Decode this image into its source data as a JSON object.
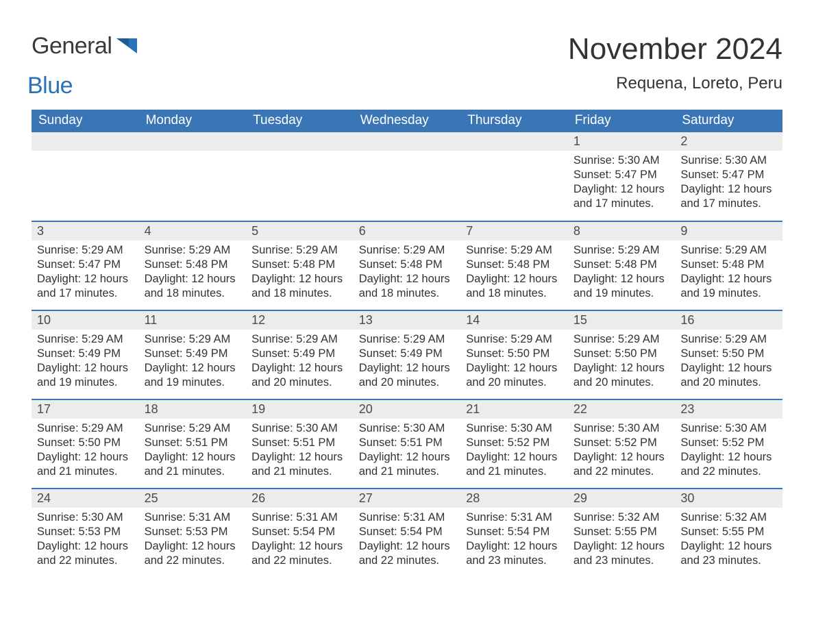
{
  "logo": {
    "word1": "General",
    "word2": "Blue",
    "brand_color": "#2a71b8",
    "text_color": "#3a3a3a"
  },
  "header": {
    "month_title": "November 2024",
    "location": "Requena, Loreto, Peru"
  },
  "colors": {
    "header_bg": "#3a76b6",
    "header_text": "#ffffff",
    "daynum_bg": "#ececec",
    "daynum_text": "#4a4a4a",
    "body_text": "#333333",
    "rule": "#3a76b6",
    "page_bg": "#ffffff"
  },
  "typography": {
    "month_title_fontsize": 44,
    "location_fontsize": 24,
    "weekday_fontsize": 19,
    "daynum_fontsize": 18,
    "cell_fontsize": 16.5,
    "font_family": "Arial"
  },
  "calendar": {
    "weekdays": [
      "Sunday",
      "Monday",
      "Tuesday",
      "Wednesday",
      "Thursday",
      "Friday",
      "Saturday"
    ],
    "weeks": [
      [
        null,
        null,
        null,
        null,
        null,
        {
          "day": "1",
          "sunrise": "Sunrise: 5:30 AM",
          "sunset": "Sunset: 5:47 PM",
          "daylight1": "Daylight: 12 hours",
          "daylight2": "and 17 minutes."
        },
        {
          "day": "2",
          "sunrise": "Sunrise: 5:30 AM",
          "sunset": "Sunset: 5:47 PM",
          "daylight1": "Daylight: 12 hours",
          "daylight2": "and 17 minutes."
        }
      ],
      [
        {
          "day": "3",
          "sunrise": "Sunrise: 5:29 AM",
          "sunset": "Sunset: 5:47 PM",
          "daylight1": "Daylight: 12 hours",
          "daylight2": "and 17 minutes."
        },
        {
          "day": "4",
          "sunrise": "Sunrise: 5:29 AM",
          "sunset": "Sunset: 5:48 PM",
          "daylight1": "Daylight: 12 hours",
          "daylight2": "and 18 minutes."
        },
        {
          "day": "5",
          "sunrise": "Sunrise: 5:29 AM",
          "sunset": "Sunset: 5:48 PM",
          "daylight1": "Daylight: 12 hours",
          "daylight2": "and 18 minutes."
        },
        {
          "day": "6",
          "sunrise": "Sunrise: 5:29 AM",
          "sunset": "Sunset: 5:48 PM",
          "daylight1": "Daylight: 12 hours",
          "daylight2": "and 18 minutes."
        },
        {
          "day": "7",
          "sunrise": "Sunrise: 5:29 AM",
          "sunset": "Sunset: 5:48 PM",
          "daylight1": "Daylight: 12 hours",
          "daylight2": "and 18 minutes."
        },
        {
          "day": "8",
          "sunrise": "Sunrise: 5:29 AM",
          "sunset": "Sunset: 5:48 PM",
          "daylight1": "Daylight: 12 hours",
          "daylight2": "and 19 minutes."
        },
        {
          "day": "9",
          "sunrise": "Sunrise: 5:29 AM",
          "sunset": "Sunset: 5:48 PM",
          "daylight1": "Daylight: 12 hours",
          "daylight2": "and 19 minutes."
        }
      ],
      [
        {
          "day": "10",
          "sunrise": "Sunrise: 5:29 AM",
          "sunset": "Sunset: 5:49 PM",
          "daylight1": "Daylight: 12 hours",
          "daylight2": "and 19 minutes."
        },
        {
          "day": "11",
          "sunrise": "Sunrise: 5:29 AM",
          "sunset": "Sunset: 5:49 PM",
          "daylight1": "Daylight: 12 hours",
          "daylight2": "and 19 minutes."
        },
        {
          "day": "12",
          "sunrise": "Sunrise: 5:29 AM",
          "sunset": "Sunset: 5:49 PM",
          "daylight1": "Daylight: 12 hours",
          "daylight2": "and 20 minutes."
        },
        {
          "day": "13",
          "sunrise": "Sunrise: 5:29 AM",
          "sunset": "Sunset: 5:49 PM",
          "daylight1": "Daylight: 12 hours",
          "daylight2": "and 20 minutes."
        },
        {
          "day": "14",
          "sunrise": "Sunrise: 5:29 AM",
          "sunset": "Sunset: 5:50 PM",
          "daylight1": "Daylight: 12 hours",
          "daylight2": "and 20 minutes."
        },
        {
          "day": "15",
          "sunrise": "Sunrise: 5:29 AM",
          "sunset": "Sunset: 5:50 PM",
          "daylight1": "Daylight: 12 hours",
          "daylight2": "and 20 minutes."
        },
        {
          "day": "16",
          "sunrise": "Sunrise: 5:29 AM",
          "sunset": "Sunset: 5:50 PM",
          "daylight1": "Daylight: 12 hours",
          "daylight2": "and 20 minutes."
        }
      ],
      [
        {
          "day": "17",
          "sunrise": "Sunrise: 5:29 AM",
          "sunset": "Sunset: 5:50 PM",
          "daylight1": "Daylight: 12 hours",
          "daylight2": "and 21 minutes."
        },
        {
          "day": "18",
          "sunrise": "Sunrise: 5:29 AM",
          "sunset": "Sunset: 5:51 PM",
          "daylight1": "Daylight: 12 hours",
          "daylight2": "and 21 minutes."
        },
        {
          "day": "19",
          "sunrise": "Sunrise: 5:30 AM",
          "sunset": "Sunset: 5:51 PM",
          "daylight1": "Daylight: 12 hours",
          "daylight2": "and 21 minutes."
        },
        {
          "day": "20",
          "sunrise": "Sunrise: 5:30 AM",
          "sunset": "Sunset: 5:51 PM",
          "daylight1": "Daylight: 12 hours",
          "daylight2": "and 21 minutes."
        },
        {
          "day": "21",
          "sunrise": "Sunrise: 5:30 AM",
          "sunset": "Sunset: 5:52 PM",
          "daylight1": "Daylight: 12 hours",
          "daylight2": "and 21 minutes."
        },
        {
          "day": "22",
          "sunrise": "Sunrise: 5:30 AM",
          "sunset": "Sunset: 5:52 PM",
          "daylight1": "Daylight: 12 hours",
          "daylight2": "and 22 minutes."
        },
        {
          "day": "23",
          "sunrise": "Sunrise: 5:30 AM",
          "sunset": "Sunset: 5:52 PM",
          "daylight1": "Daylight: 12 hours",
          "daylight2": "and 22 minutes."
        }
      ],
      [
        {
          "day": "24",
          "sunrise": "Sunrise: 5:30 AM",
          "sunset": "Sunset: 5:53 PM",
          "daylight1": "Daylight: 12 hours",
          "daylight2": "and 22 minutes."
        },
        {
          "day": "25",
          "sunrise": "Sunrise: 5:31 AM",
          "sunset": "Sunset: 5:53 PM",
          "daylight1": "Daylight: 12 hours",
          "daylight2": "and 22 minutes."
        },
        {
          "day": "26",
          "sunrise": "Sunrise: 5:31 AM",
          "sunset": "Sunset: 5:54 PM",
          "daylight1": "Daylight: 12 hours",
          "daylight2": "and 22 minutes."
        },
        {
          "day": "27",
          "sunrise": "Sunrise: 5:31 AM",
          "sunset": "Sunset: 5:54 PM",
          "daylight1": "Daylight: 12 hours",
          "daylight2": "and 22 minutes."
        },
        {
          "day": "28",
          "sunrise": "Sunrise: 5:31 AM",
          "sunset": "Sunset: 5:54 PM",
          "daylight1": "Daylight: 12 hours",
          "daylight2": "and 23 minutes."
        },
        {
          "day": "29",
          "sunrise": "Sunrise: 5:32 AM",
          "sunset": "Sunset: 5:55 PM",
          "daylight1": "Daylight: 12 hours",
          "daylight2": "and 23 minutes."
        },
        {
          "day": "30",
          "sunrise": "Sunrise: 5:32 AM",
          "sunset": "Sunset: 5:55 PM",
          "daylight1": "Daylight: 12 hours",
          "daylight2": "and 23 minutes."
        }
      ]
    ]
  }
}
